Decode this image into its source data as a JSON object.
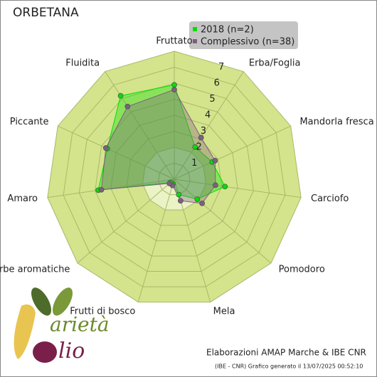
{
  "chart_data": {
    "type": "radar",
    "title": "ORBETANA",
    "categories": [
      "Fruttato",
      "Erba/Foglia",
      "Mandorla fresca",
      "Carciofo",
      "Pomodoro",
      "Mela",
      "Frutti di bosco",
      "Erbe aromatiche",
      "Amaro",
      "Piccante",
      "Fluidita"
    ],
    "series": [
      {
        "name": "2018 (n=2)",
        "color": "#00e000",
        "values": [
          5.9,
          2.4,
          2.6,
          3.2,
          1.9,
          1.0,
          0.3,
          0.3,
          4.8,
          4.6,
          6.2
        ]
      },
      {
        "name": "Complessivo (n=38)",
        "color": "#7f5f7f",
        "values": [
          5.6,
          3.1,
          2.8,
          2.6,
          2.3,
          1.4,
          0.4,
          0.4,
          4.6,
          4.7,
          5.4
        ]
      }
    ],
    "ylim": [
      0,
      8
    ],
    "yticks": [
      1,
      2,
      3,
      4,
      5,
      6,
      7
    ],
    "grid": true
  },
  "logo": {
    "word1": "arietà",
    "word2": "lio"
  },
  "footer": {
    "credit": "Elaborazioni AMAP Marche & IBE CNR",
    "generated": "(IBE - CNR) Grafico generato il 13/07/2025 00:52:10"
  }
}
